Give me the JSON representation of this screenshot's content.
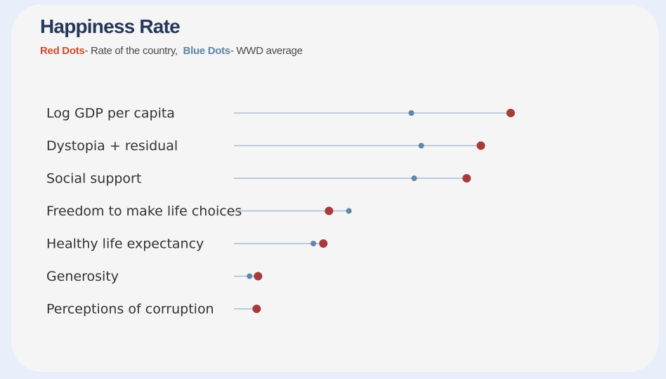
{
  "header": {
    "title": "Happiness Rate",
    "legend_red": "Red Dots",
    "legend_red_desc": "- Rate of the country,",
    "legend_blue": "Blue Dots",
    "legend_blue_desc": "- WWD average"
  },
  "colors": {
    "country": "#a63b3b",
    "average": "#5f86ab",
    "stem": "#a9bdd8"
  },
  "chart_data": {
    "type": "dot",
    "categories": [
      "Log GDP per capita",
      "Dystopia + residual",
      "Social support",
      "Freedom to make life choices",
      "Healthy life expectancy",
      "Generosity",
      "Perceptions of corruption"
    ],
    "series": [
      {
        "name": "Rate of the country",
        "values": [
          1.95,
          1.74,
          1.64,
          0.67,
          0.63,
          0.17,
          0.16
        ]
      },
      {
        "name": "WWD average",
        "values": [
          1.25,
          1.32,
          1.27,
          0.81,
          0.56,
          0.11,
          0.15
        ]
      }
    ],
    "xlim": [
      0,
      2.5
    ],
    "grid": false
  }
}
